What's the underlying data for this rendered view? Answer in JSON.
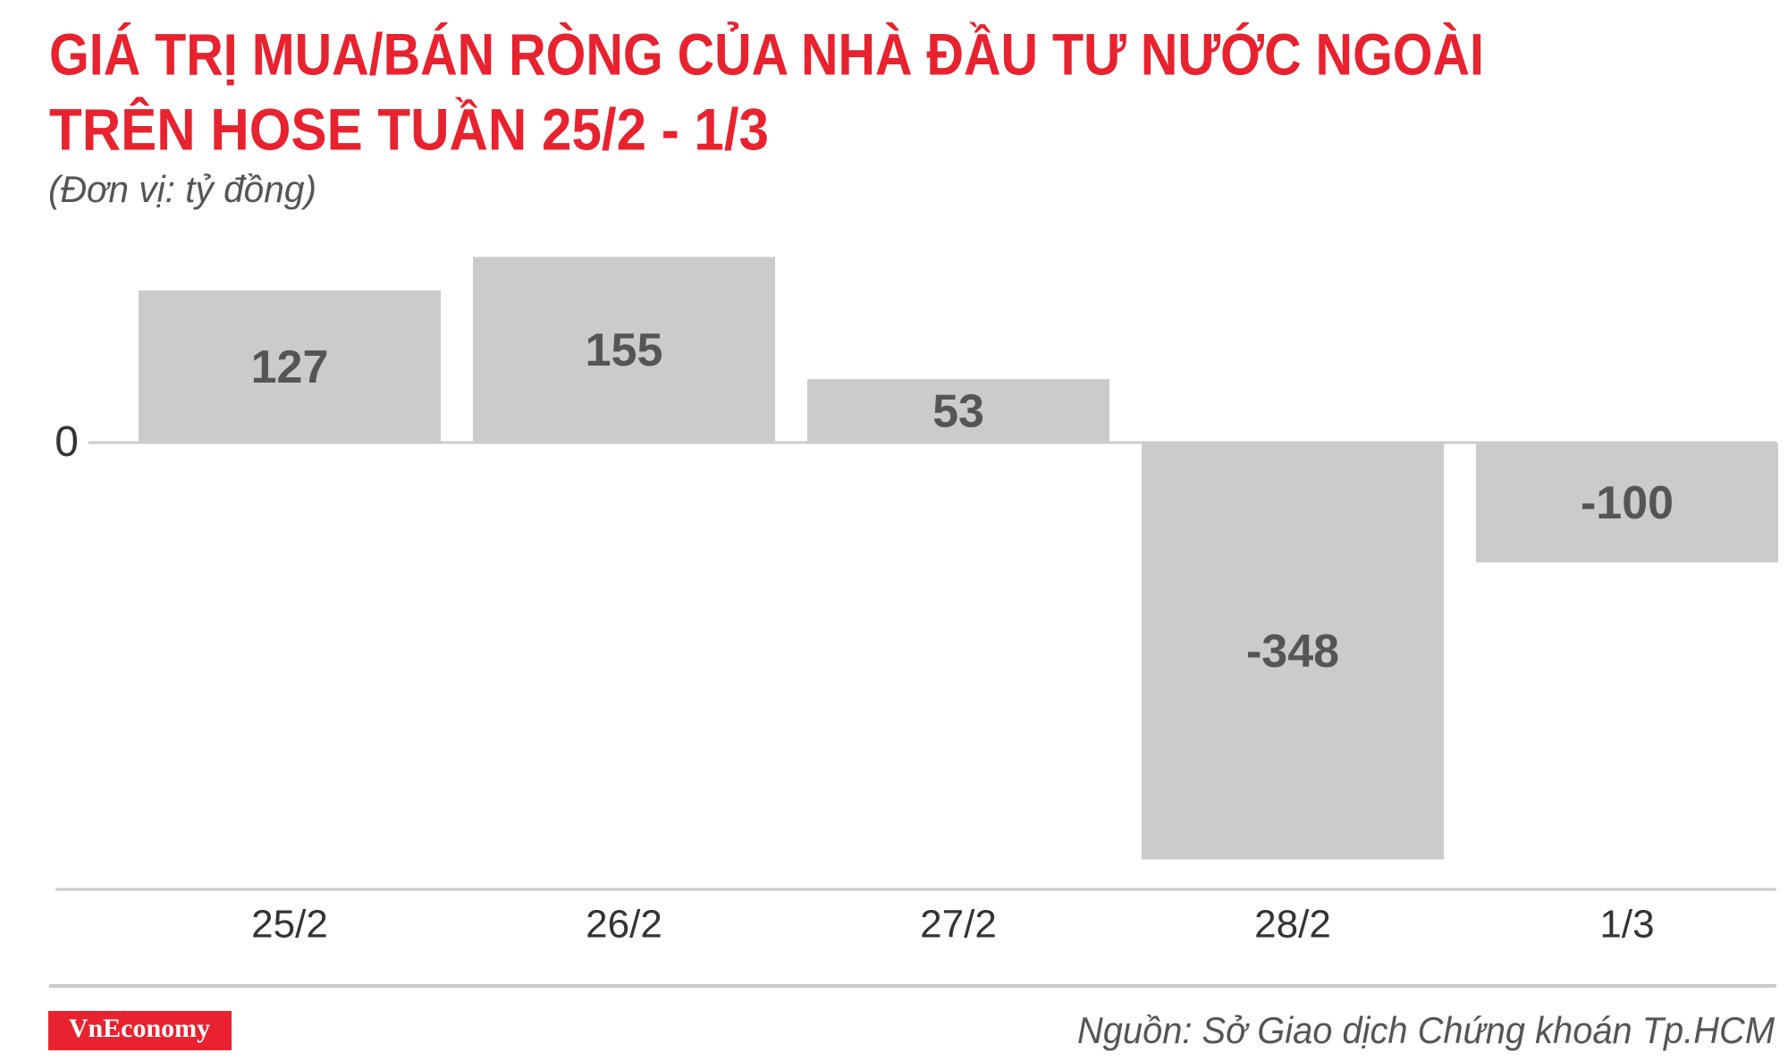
{
  "chart_data": {
    "type": "bar",
    "title": [
      "GIÁ TRỊ MUA/BÁN RÒNG CỦA NHÀ ĐẦU TƯ NƯỚC NGOÀI",
      "TRÊN HOSE TUẦN 25/2 - 1/3"
    ],
    "subtitle": "(Đơn vị: tỷ đồng)",
    "categories": [
      "25/2",
      "26/2",
      "27/2",
      "28/2",
      "1/3"
    ],
    "values": [
      127,
      155,
      53,
      -348,
      -100
    ],
    "color": "#cccbcb",
    "ylim": [
      -370,
      165
    ],
    "yticks": [
      0
    ],
    "grid": true
  },
  "footer": {
    "brand": "VnEconomy",
    "source": "Nguồn: Sở Giao dịch Chứng khoán Tp.HCM"
  }
}
